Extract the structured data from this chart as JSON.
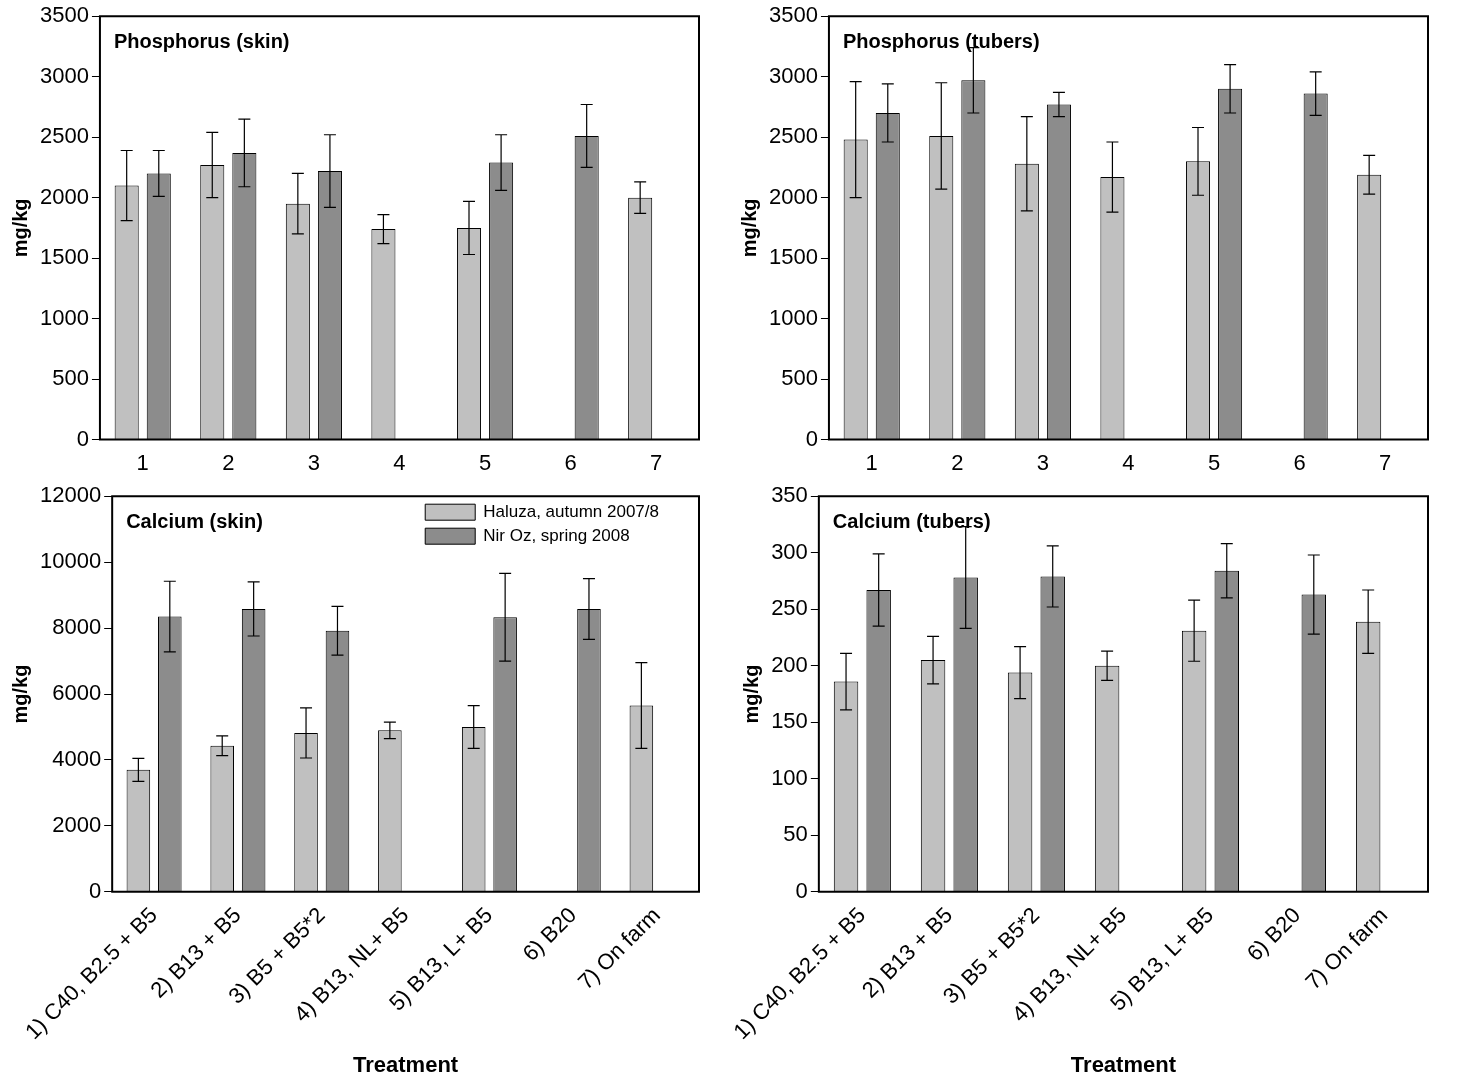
{
  "chart_data": [
    {
      "type": "bar",
      "title": "Phosphorus (skin)",
      "ylabel": "mg/kg",
      "categories": [
        "1",
        "2",
        "3",
        "4",
        "5",
        "6",
        "7"
      ],
      "ylim": [
        0,
        3500
      ],
      "yticks": [
        0,
        500,
        1000,
        1500,
        2000,
        2500,
        3000,
        3500
      ],
      "grid": false,
      "legend": false,
      "series": [
        {
          "color": "#c0c0c0",
          "values": [
            2100,
            2270,
            1950,
            1740,
            1750,
            null,
            2000
          ],
          "errors": [
            290,
            270,
            250,
            120,
            220,
            null,
            130
          ]
        },
        {
          "color": "#8c8c8c",
          "values": [
            2200,
            2370,
            2220,
            null,
            2290,
            2510,
            null
          ],
          "errors": [
            190,
            280,
            300,
            null,
            230,
            260,
            null
          ]
        }
      ]
    },
    {
      "type": "bar",
      "title": "Phosphorus (tubers)",
      "ylabel": "mg/kg",
      "categories": [
        "1",
        "2",
        "3",
        "4",
        "5",
        "6",
        "7"
      ],
      "ylim": [
        0,
        3500
      ],
      "yticks": [
        0,
        500,
        1000,
        1500,
        2000,
        2500,
        3000,
        3500
      ],
      "grid": false,
      "legend": false,
      "series": [
        {
          "color": "#c0c0c0",
          "values": [
            2480,
            2510,
            2280,
            2170,
            2300,
            null,
            2190
          ],
          "errors": [
            480,
            440,
            390,
            290,
            280,
            null,
            160
          ]
        },
        {
          "color": "#8c8c8c",
          "values": [
            2700,
            2970,
            2770,
            null,
            2900,
            2860,
            null
          ],
          "errors": [
            240,
            270,
            100,
            null,
            200,
            180,
            null
          ]
        }
      ]
    },
    {
      "type": "bar",
      "title": "Calcium (skin)",
      "xlabel": "Treatment",
      "ylabel": "mg/kg",
      "categories": [
        "1) C40, B2.5 + B5",
        "2) B13 + B5",
        "3) B5 + B5*2",
        "4) B13, NL+ B5",
        "5) B13, L+ B5",
        "6) B20",
        "7) On farm"
      ],
      "ylim": [
        0,
        12000
      ],
      "yticks": [
        0,
        2000,
        4000,
        6000,
        8000,
        10000,
        12000
      ],
      "grid": false,
      "legend": "top right",
      "series": [
        {
          "name": "Haluza, autumn 2007/8",
          "color": "#c0c0c0",
          "values": [
            3700,
            4430,
            4820,
            4900,
            5000,
            null,
            5650
          ],
          "errors": [
            350,
            300,
            760,
            250,
            650,
            null,
            1300
          ]
        },
        {
          "name": "Nir Oz, spring 2008",
          "color": "#8c8c8c",
          "values": [
            8350,
            8580,
            7920,
            null,
            8330,
            8580,
            null
          ],
          "errors": [
            1070,
            820,
            740,
            null,
            1330,
            920,
            null
          ]
        }
      ]
    },
    {
      "type": "bar",
      "title": "Calcium (tubers)",
      "xlabel": "Treatment",
      "ylabel": "mg/kg",
      "categories": [
        "1) C40, B2.5 + B5",
        "2) B13 + B5",
        "3) B5 + B5*2",
        "4) B13, NL+ B5",
        "5) B13, L+ B5",
        "6) B20",
        "7) On farm"
      ],
      "ylim": [
        0,
        350
      ],
      "yticks": [
        0,
        50,
        100,
        150,
        200,
        250,
        300,
        350
      ],
      "grid": false,
      "legend": false,
      "series": [
        {
          "color": "#c0c0c0",
          "values": [
            186,
            205,
            194,
            200,
            231,
            null,
            239
          ],
          "errors": [
            25,
            21,
            23,
            13,
            27,
            null,
            28
          ]
        },
        {
          "color": "#8c8c8c",
          "values": [
            267,
            278,
            279,
            null,
            284,
            263,
            null
          ],
          "errors": [
            32,
            45,
            27,
            null,
            24,
            35,
            null
          ]
        }
      ]
    }
  ]
}
